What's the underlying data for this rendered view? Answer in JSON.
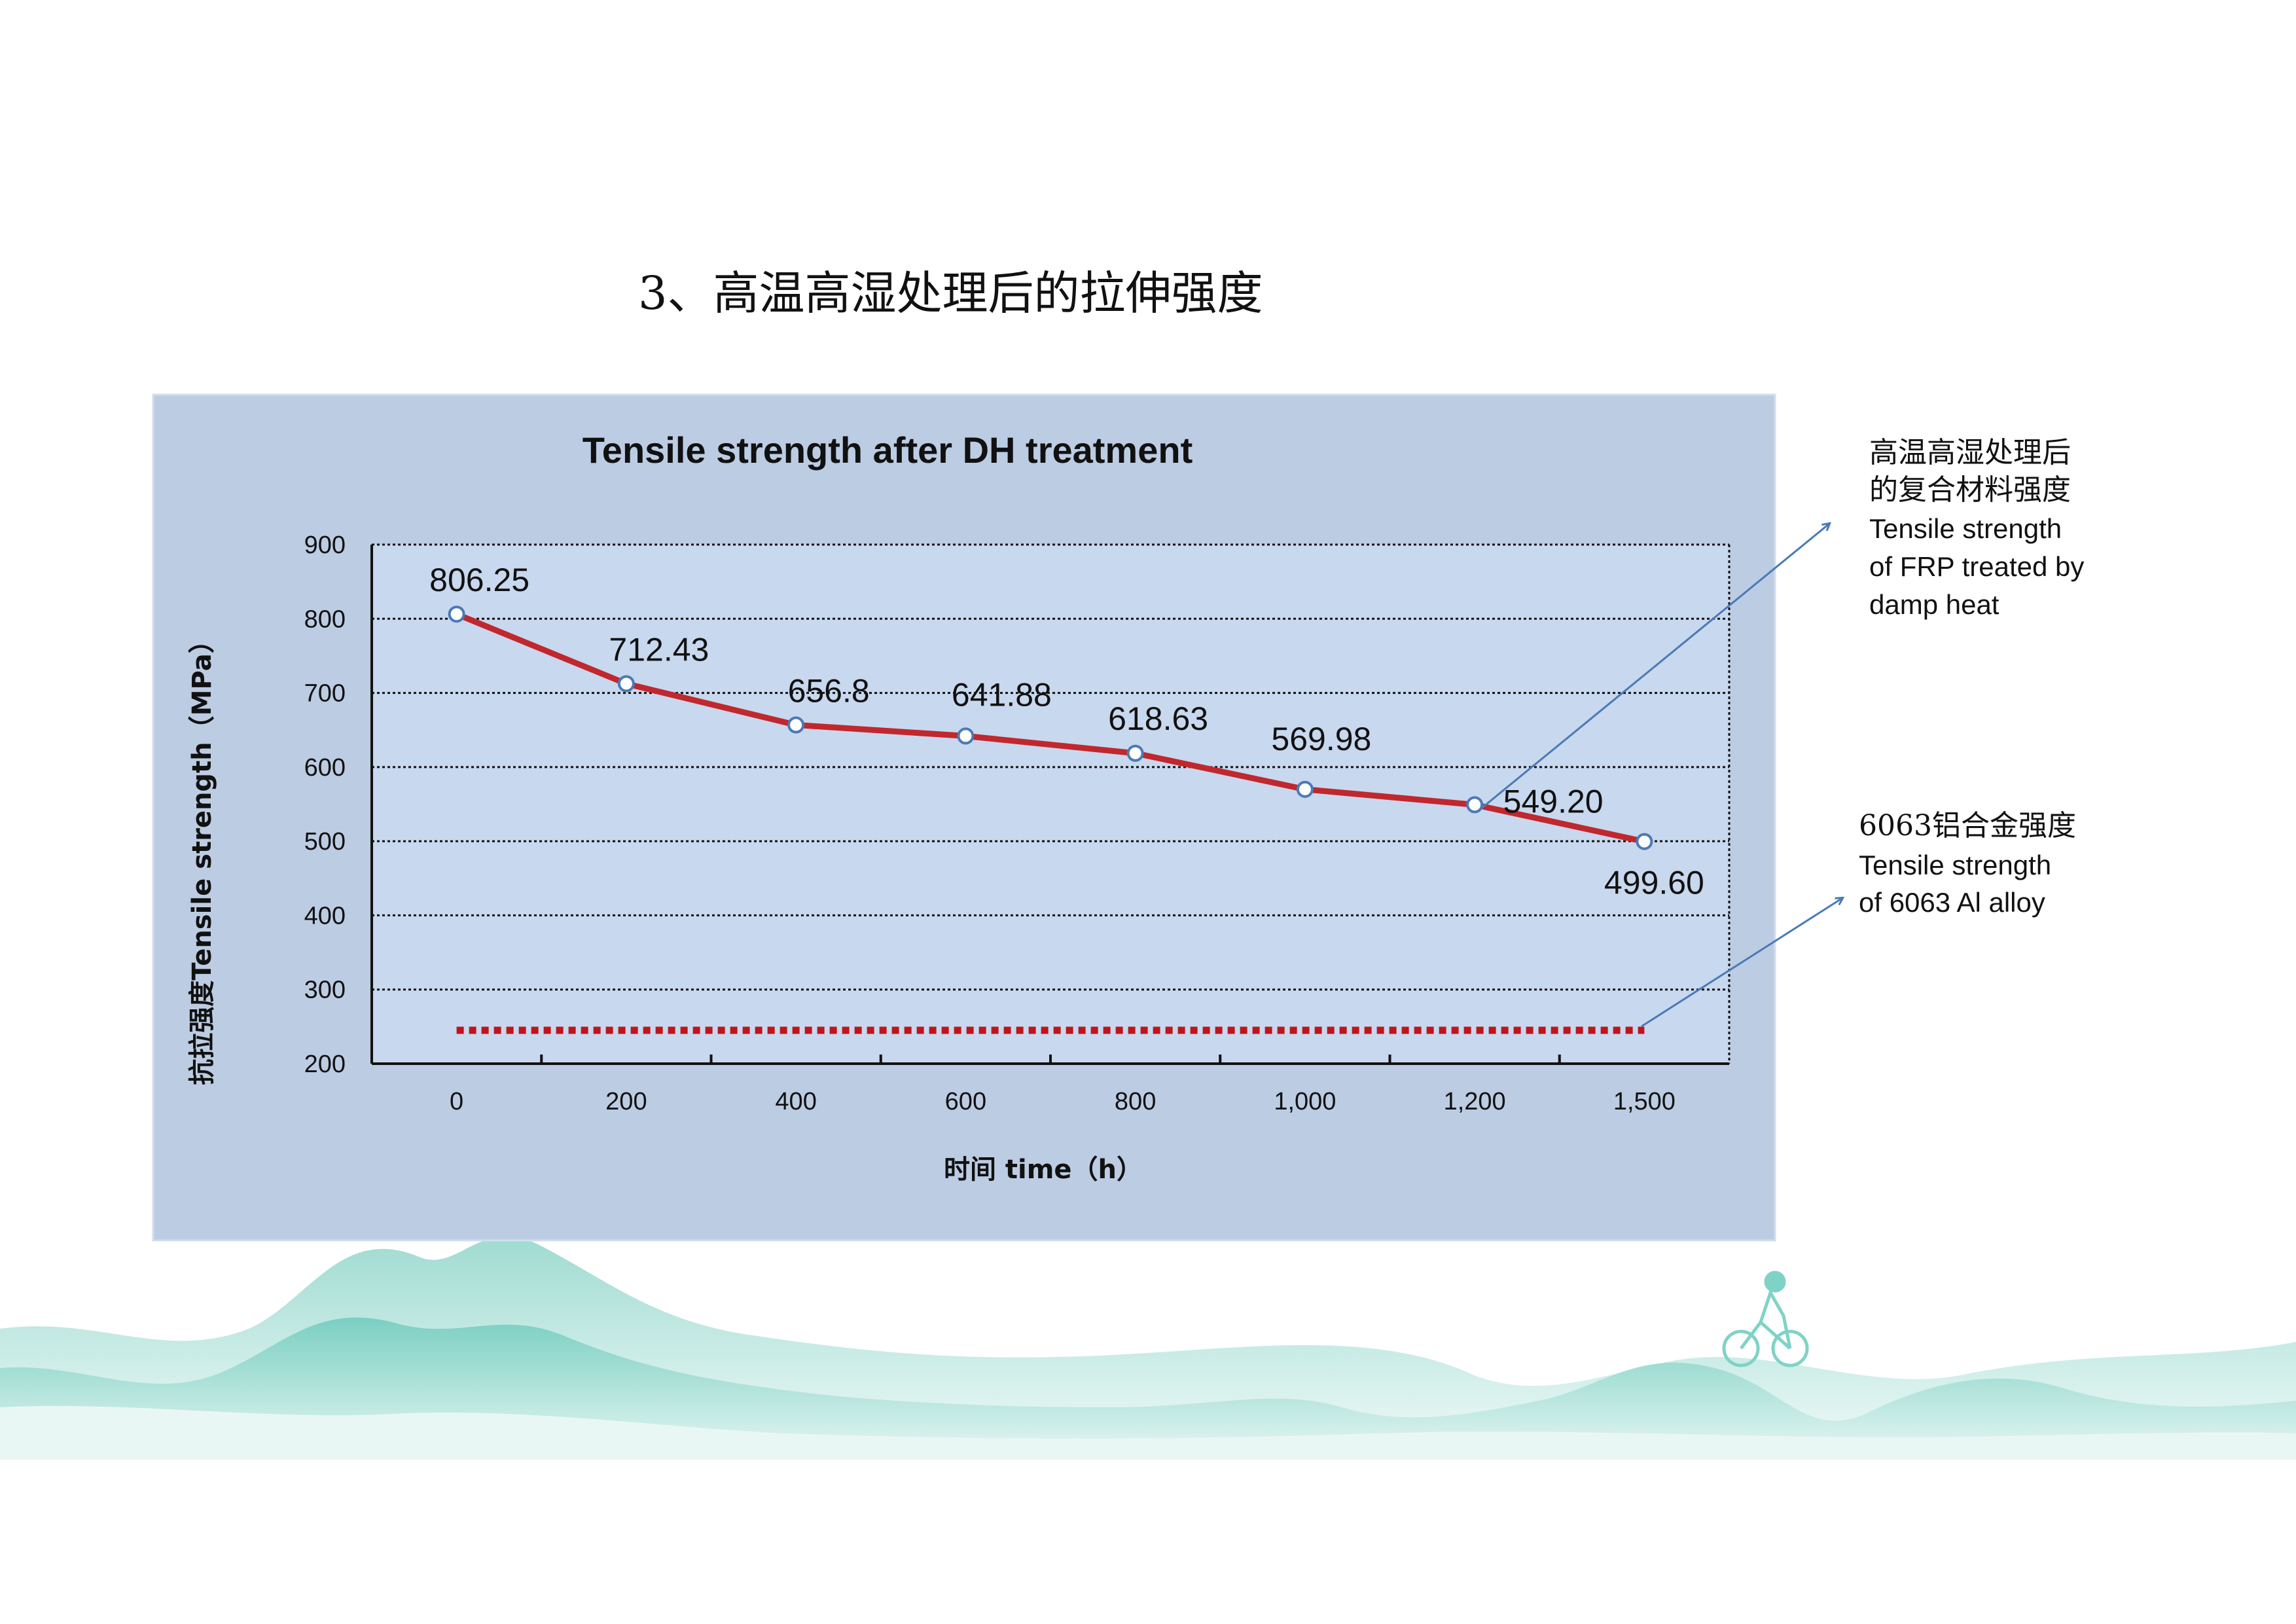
{
  "page": {
    "heading": "3、高温高湿处理后的拉伸强度"
  },
  "annotations": {
    "frp_cn_line1": "高温高湿处理后",
    "frp_cn_line2": "的复合材料强度",
    "frp_en_line1": "Tensile strength",
    "frp_en_line2": "of FRP treated by",
    "frp_en_line3": "damp heat",
    "al_cn": "6063铝合金强度",
    "al_en_line1": "Tensile strength",
    "al_en_line2": "of 6063 Al alloy"
  },
  "colors": {
    "panel_bg": "#bccce3",
    "plot_bg": "#c8d8ee",
    "frp_line": "#c0282d",
    "al_line": "#c0141b",
    "arrow": "#4a7ab5",
    "marker_edge": "#4a7ab5",
    "mountain_dark": "#5cc2b3",
    "mountain_light": "#bfe6df"
  },
  "chart_data": {
    "type": "line",
    "title": "Tensile strength after DH treatment",
    "xlabel": "时间 time（h）",
    "ylabel": "抗拉强度Tensile strength（MPa）",
    "categories": [
      "0",
      "200",
      "400",
      "600",
      "800",
      "1,000",
      "1,200",
      "1,500"
    ],
    "ylim": [
      200,
      900
    ],
    "yticks": [
      "200",
      "300",
      "400",
      "500",
      "600",
      "700",
      "800",
      "900"
    ],
    "grid": true,
    "series": [
      {
        "values": [
          806.25,
          712.43,
          656.8,
          641.88,
          618.63,
          569.98,
          549.2,
          499.6
        ],
        "labels": [
          "806.25",
          "712.43",
          "656.8",
          "641.88",
          "618.63",
          "569.98",
          "549.20",
          "499.60"
        ],
        "style": "solid",
        "markers": true
      },
      {
        "values": [
          245,
          245,
          245,
          245,
          245,
          245,
          245,
          245
        ],
        "style": "dotted",
        "markers": false
      }
    ]
  }
}
